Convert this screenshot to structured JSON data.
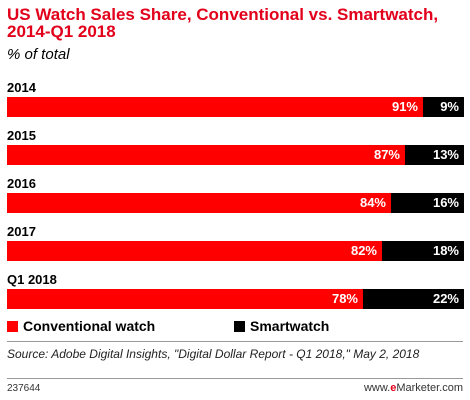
{
  "chart_data": {
    "type": "bar",
    "orientation": "horizontal",
    "stacked": true,
    "title": "US Watch Sales Share, Conventional vs. Smartwatch, 2014-Q1 2018",
    "subtitle": "% of total",
    "categories": [
      "2014",
      "2015",
      "2016",
      "2017",
      "Q1 2018"
    ],
    "series": [
      {
        "name": "Conventional watch",
        "color": "#ff0000",
        "values": [
          91,
          87,
          84,
          82,
          78
        ],
        "labels": [
          "91%",
          "87%",
          "84%",
          "82%",
          "78%"
        ]
      },
      {
        "name": "Smartwatch",
        "color": "#000000",
        "values": [
          9,
          13,
          16,
          18,
          22
        ],
        "labels": [
          "9%",
          "13%",
          "16%",
          "18%",
          "22%"
        ]
      }
    ],
    "xlim": [
      0,
      100
    ],
    "grid": false,
    "legend": "bottom-left"
  },
  "footer": {
    "source": "Source: Adobe Digital Insights, \"Digital Dollar Report - Q1 2018,\" May 2, 2018",
    "id": "237644",
    "brand_prefix": "www.",
    "brand_e": "e",
    "brand_rest": "Marketer.com"
  }
}
